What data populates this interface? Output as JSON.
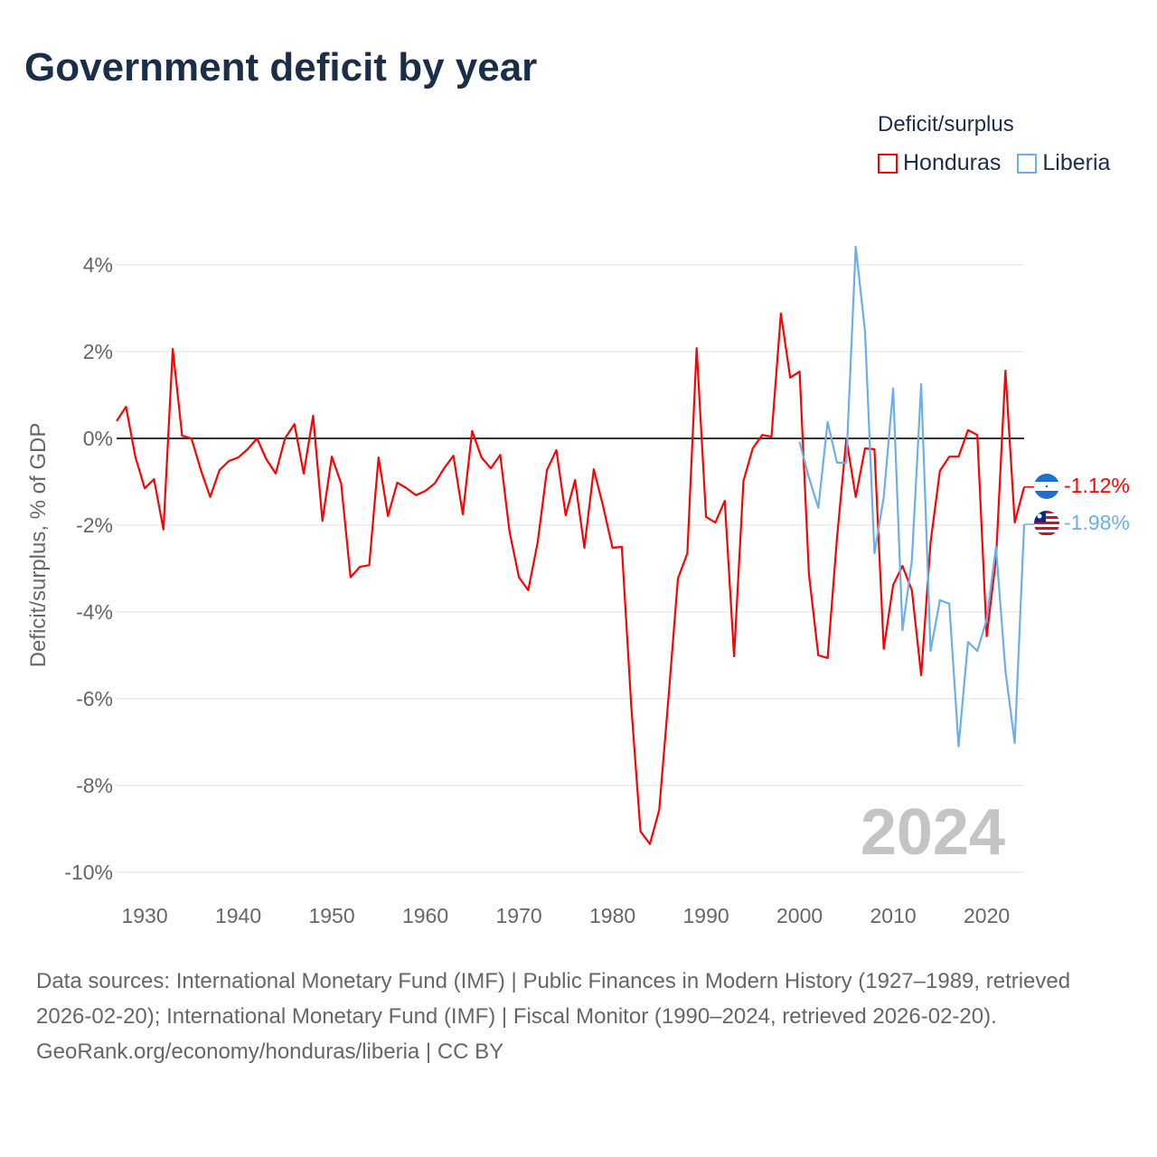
{
  "title": "Government deficit by year",
  "legend": {
    "title": "Deficit/surplus",
    "items": [
      {
        "label": "Honduras",
        "color": "#ff0000"
      },
      {
        "label": "Liberia",
        "color": "#6aaeea"
      }
    ]
  },
  "year_watermark": "2024",
  "end_labels": [
    "-1.12%",
    "-1.98%"
  ],
  "footer": {
    "sources": "Data sources: International Monetary Fund (IMF) | Public Finances in Modern History (1927–1989, retrieved 2026-02-20); International Monetary Fund (IMF) | Fiscal Monitor (1990–2024, retrieved 2026-02-20).",
    "credit": "GeoRank.org/economy/honduras/liberia | CC BY"
  },
  "chart_data": {
    "type": "line",
    "title": "Government deficit by year",
    "xlabel": "",
    "ylabel": "Deficit/surplus, % of GDP",
    "xlim": [
      1927,
      2024
    ],
    "ylim": [
      -10,
      4
    ],
    "x_ticks": [
      "1930",
      "1940",
      "1950",
      "1960",
      "1970",
      "1980",
      "1990",
      "2000",
      "2010",
      "2020"
    ],
    "y_ticks": [
      "4%",
      "2%",
      "0%",
      "-2%",
      "-4%",
      "-6%",
      "-8%",
      "-10%"
    ],
    "grid": true,
    "legend_position": "top-right",
    "series": [
      {
        "name": "Honduras",
        "color": "#ff0000",
        "start_year": 1927,
        "values": [
          0.4,
          0.73,
          -0.42,
          -1.15,
          -0.94,
          -2.1,
          2.06,
          0.06,
          0,
          -0.73,
          -1.35,
          -0.73,
          -0.52,
          -0.44,
          -0.25,
          0,
          -0.48,
          -0.81,
          0,
          0.33,
          -0.81,
          0.52,
          -1.9,
          -0.42,
          -1.04,
          -3.2,
          -2.96,
          -2.92,
          -0.44,
          -1.79,
          -1.02,
          -1.15,
          -1.31,
          -1.21,
          -1.04,
          -0.69,
          -0.4,
          -1.75,
          0.17,
          -0.44,
          -0.69,
          -0.38,
          -2.15,
          -3.2,
          -3.5,
          -2.4,
          -0.73,
          -0.27,
          -1.77,
          -0.96,
          -2.52,
          -0.71,
          -1.56,
          -2.52,
          -2.5,
          -6.15,
          -9.06,
          -9.35,
          -8.56,
          -5.94,
          -3.23,
          -2.65,
          2.08,
          -1.81,
          -1.94,
          -1.44,
          -5.02,
          -0.98,
          -0.23,
          0.08,
          0.04,
          2.88,
          1.4,
          1.54,
          -3.12,
          -5.0,
          -5.06,
          -2.29,
          0,
          -1.35,
          -0.23,
          -0.25,
          -4.85,
          -3.38,
          -2.94,
          -3.5,
          -5.46,
          -2.4,
          -0.75,
          -0.42,
          -0.42,
          0.19,
          0.08,
          -4.56,
          -2.77,
          1.56,
          -1.94,
          -1.12
        ]
      },
      {
        "name": "Liberia",
        "color": "#6aaeea",
        "start_year": 2000,
        "values": [
          -0.08,
          -0.9,
          -1.6,
          0.38,
          -0.56,
          -0.56,
          4.42,
          2.46,
          -2.65,
          -1.35,
          1.15,
          -4.42,
          -2.81,
          1.25,
          -4.9,
          -3.73,
          -3.81,
          -7.1,
          -4.69,
          -4.9,
          -4.17,
          -2.5,
          -5.35,
          -7.02,
          -1.98
        ]
      }
    ]
  }
}
